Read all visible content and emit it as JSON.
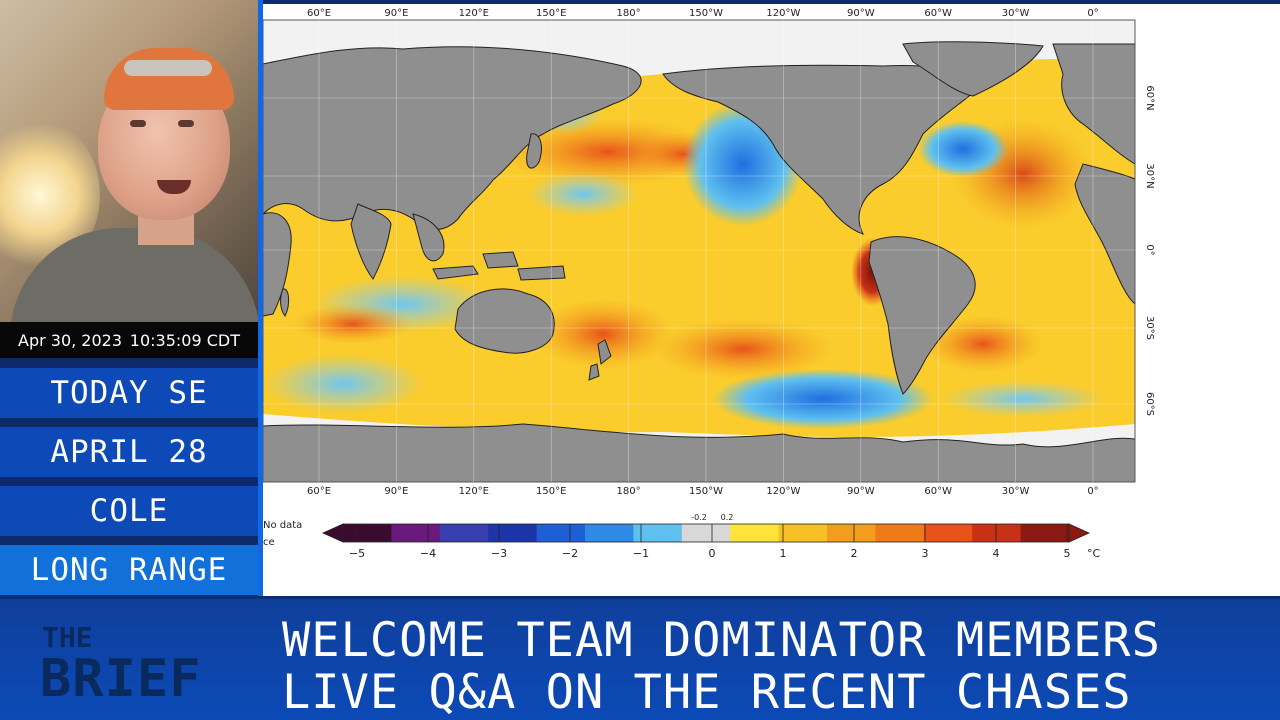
{
  "webcam": {
    "timestamp_date": "Apr 30, 2023",
    "timestamp_time": "10:35:09 CDT"
  },
  "sidebar": {
    "items": [
      {
        "label": "TODAY SE"
      },
      {
        "label": "APRIL 28"
      },
      {
        "label": "COLE"
      },
      {
        "label": "LONG RANGE"
      }
    ]
  },
  "map": {
    "top_longitude_labels": [
      "60°E",
      "90°E",
      "120°E",
      "150°E",
      "180°",
      "150°W",
      "120°W",
      "90°W",
      "60°W",
      "30°W",
      "0°"
    ],
    "bottom_longitude_labels": [
      "60°E",
      "90°E",
      "120°E",
      "150°E",
      "180°",
      "150°W",
      "120°W",
      "90°W",
      "60°W",
      "30°W",
      "0°"
    ],
    "latitude_labels": [
      "60°N",
      "30°N",
      "0°",
      "30°S",
      "60°S"
    ],
    "no_data_label": "No data",
    "no_data_label_2": "ce",
    "colorbar": {
      "tick_labels": [
        "−5",
        "−4",
        "−3",
        "−2",
        "−1",
        "0",
        "1",
        "2",
        "3",
        "4",
        "5"
      ],
      "minor_labels": [
        "-0.2",
        "0.2"
      ],
      "unit": "°C",
      "colors": [
        "#3b0a2f",
        "#6a1a7e",
        "#3a3fb0",
        "#1b34a8",
        "#1f5fd6",
        "#2f8ae6",
        "#5fc0ef",
        "#d8d8d8",
        "#ffe23a",
        "#f7c125",
        "#f39d1e",
        "#ee7a18",
        "#e8531a",
        "#c83116",
        "#8c1a12"
      ]
    }
  },
  "banner": {
    "brand_top": "THE",
    "brand_bottom": "BRIEF",
    "line1": "WELCOME TEAM DOMINATOR MEMBERS",
    "line2": "LIVE Q&A ON THE RECENT CHASES"
  },
  "colors": {
    "banner_blue": "#0c4ab6",
    "sidebar_blue": "#0d4ab8",
    "land_gray": "#8f8f8f",
    "ocean_warm": "#f7c125"
  }
}
